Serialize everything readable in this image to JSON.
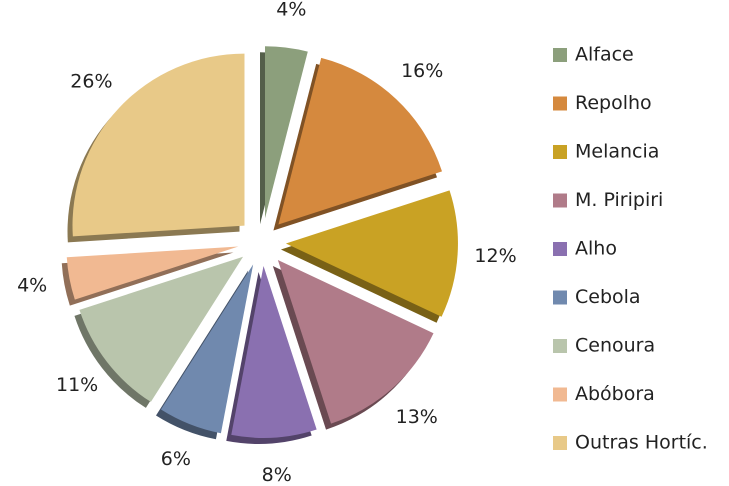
{
  "chart_data": {
    "type": "pie",
    "categories": [
      "Alface",
      "Repolho",
      "Melancia",
      "M. Piripiri",
      "Alho",
      "Cebola",
      "Cenoura",
      "Abóbora",
      "Outras Hortíc."
    ],
    "values": [
      4,
      16,
      12,
      13,
      8,
      6,
      11,
      4,
      26
    ],
    "value_labels": [
      "4%",
      "16%",
      "12%",
      "13%",
      "8%",
      "6%",
      "11%",
      "4%",
      "26%"
    ],
    "colors": [
      "#8c9f7c",
      "#d5893e",
      "#c9a224",
      "#b07b89",
      "#8a70b0",
      "#7089ae",
      "#b9c5ac",
      "#f1b992",
      "#e8c988"
    ],
    "legend": "right"
  }
}
